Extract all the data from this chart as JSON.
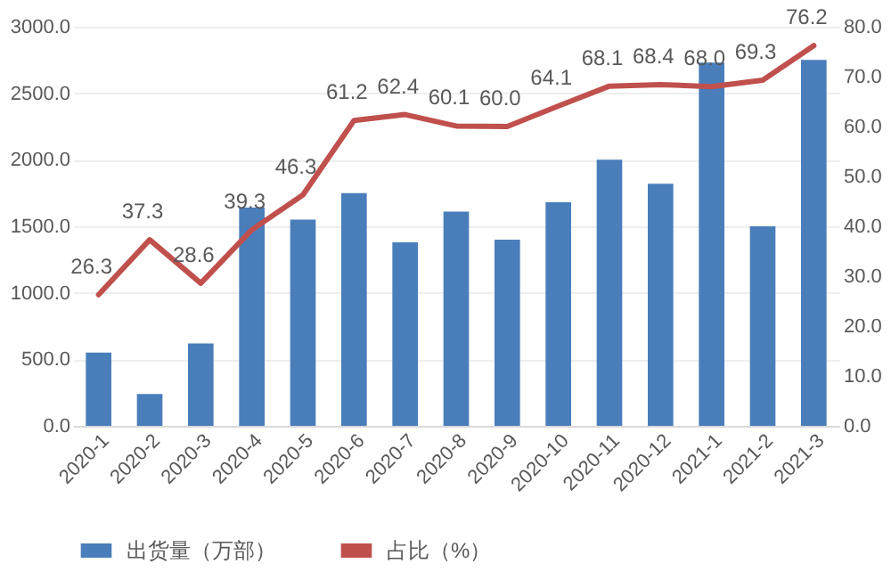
{
  "chart_data": {
    "type": "bar",
    "categories": [
      "2020-1",
      "2020-2",
      "2020-3",
      "2020-4",
      "2020-5",
      "2020-6",
      "2020-7",
      "2020-8",
      "2020-9",
      "2020-10",
      "2020-11",
      "2020-12",
      "2021-1",
      "2021-2",
      "2021-3"
    ],
    "series": [
      {
        "name": "出货量（万部）",
        "color": "#4a7ebb",
        "values": [
          550,
          240,
          620,
          1640,
          1550,
          1750,
          1380,
          1610,
          1400,
          1680,
          2000,
          1820,
          2730,
          1500,
          2750
        ]
      },
      {
        "name": "占比（%）",
        "type": "line",
        "axis": "y2",
        "color": "#c0504d",
        "values": [
          26.3,
          37.3,
          28.6,
          39.3,
          46.3,
          61.2,
          62.4,
          60.1,
          60.0,
          64.1,
          68.1,
          68.4,
          68.0,
          69.3,
          76.2
        ],
        "value_labels": [
          "26.3",
          "37.3",
          "28.6",
          "39.3",
          "46.3",
          "61.2",
          "62.4",
          "60.1",
          "60.0",
          "64.1",
          "68.1",
          "68.4",
          "68.0",
          "69.3",
          "76.2"
        ]
      }
    ],
    "ylim": [
      0,
      3000
    ],
    "yticks": [
      {
        "value": 0,
        "label": "0.0"
      },
      {
        "value": 500,
        "label": "500.0"
      },
      {
        "value": 1000,
        "label": "1000.0"
      },
      {
        "value": 1500,
        "label": "1500.0"
      },
      {
        "value": 2000,
        "label": "2000.0"
      },
      {
        "value": 2500,
        "label": "2500.0"
      },
      {
        "value": 3000,
        "label": "3000.0"
      }
    ],
    "y2lim": [
      0,
      80
    ],
    "y2ticks": [
      {
        "value": 0,
        "label": "0.0"
      },
      {
        "value": 10,
        "label": "10.0"
      },
      {
        "value": 20,
        "label": "20.0"
      },
      {
        "value": 30,
        "label": "30.0"
      },
      {
        "value": 40,
        "label": "40.0"
      },
      {
        "value": 50,
        "label": "50.0"
      },
      {
        "value": 60,
        "label": "60.0"
      },
      {
        "value": 70,
        "label": "70.0"
      },
      {
        "value": 80,
        "label": "80.0"
      }
    ],
    "grid": "y",
    "legend": "bottom",
    "marker": "none"
  }
}
